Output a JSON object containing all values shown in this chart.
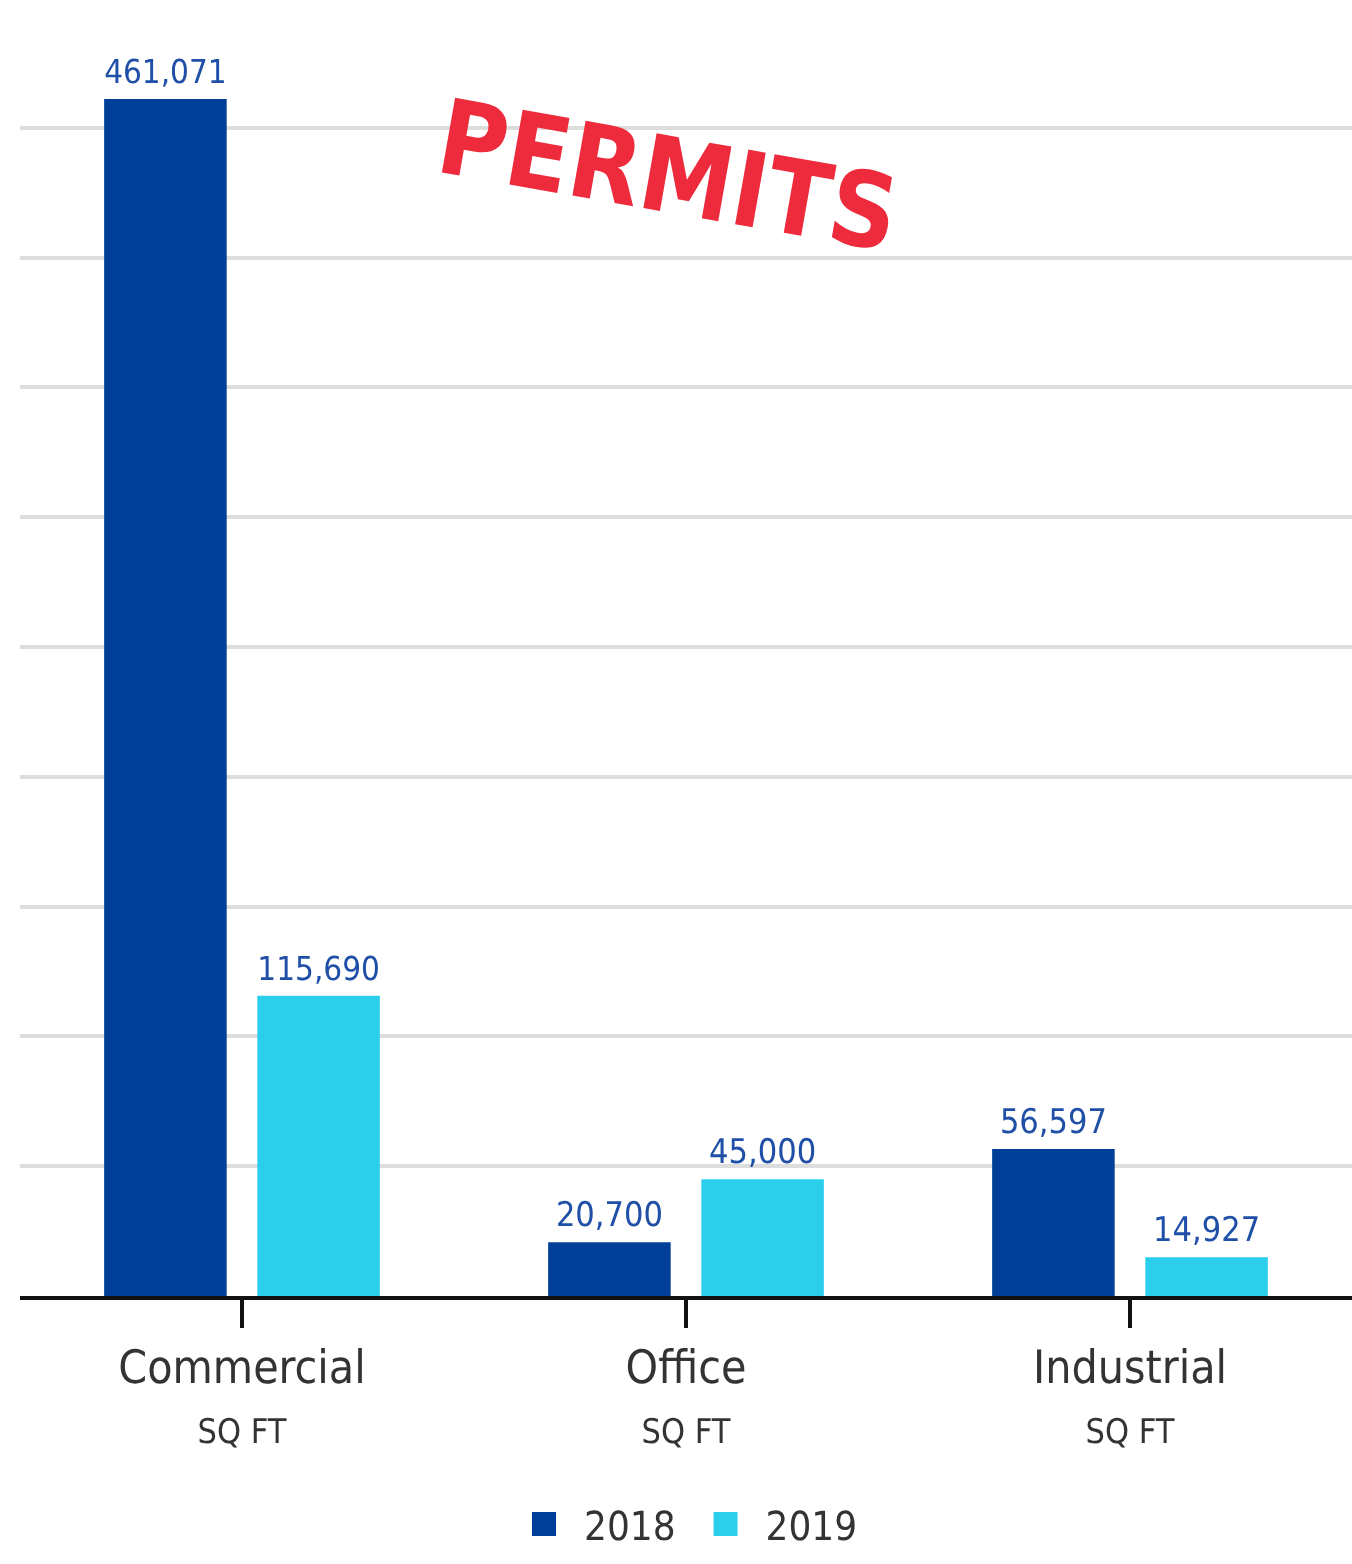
{
  "chart_data": {
    "type": "bar",
    "title": "PERMITS",
    "categories": [
      "Commercial\nSQ FT",
      "Office\nSQ FT",
      "Industrial\nSQ FT"
    ],
    "series": [
      {
        "name": "2018",
        "color": "#003f98",
        "values": [
          461071,
          20700,
          56597
        ],
        "value_labels": [
          "461,071",
          "20,700",
          "56,597"
        ]
      },
      {
        "name": "2019",
        "color": "#2bcfec",
        "values": [
          115690,
          45000,
          14927
        ],
        "value_labels": [
          "115,690",
          "45,000",
          "14,927"
        ]
      }
    ],
    "tick_labels": "x",
    "grid": "y",
    "legend": "bottom"
  }
}
